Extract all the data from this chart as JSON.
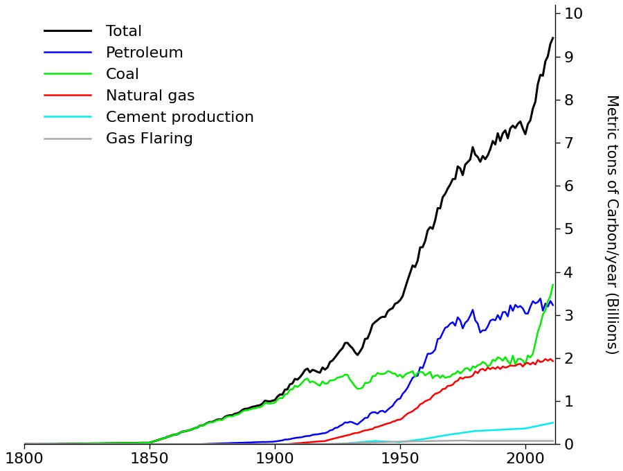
{
  "ylabel": "Metric tons of Carbon/year (Billions)",
  "xlim": [
    1800,
    2012
  ],
  "ylim": [
    0,
    10.2
  ],
  "yticks": [
    0,
    1,
    2,
    3,
    4,
    5,
    6,
    7,
    8,
    9,
    10
  ],
  "xticks": [
    1800,
    1850,
    1900,
    1950,
    2000
  ],
  "legend_labels": [
    "Total",
    "Petroleum",
    "Coal",
    "Natural gas",
    "Cement production",
    "Gas Flaring"
  ],
  "legend_colors": [
    "#000000",
    "#0000ff",
    "#00ee00",
    "#ff0000",
    "#00eeee",
    "#aaaaaa"
  ],
  "line_widths": [
    2.2,
    1.8,
    1.8,
    1.8,
    1.8,
    1.8
  ],
  "legend_fontsize": 16,
  "tick_fontsize": 16,
  "ylabel_fontsize": 15
}
